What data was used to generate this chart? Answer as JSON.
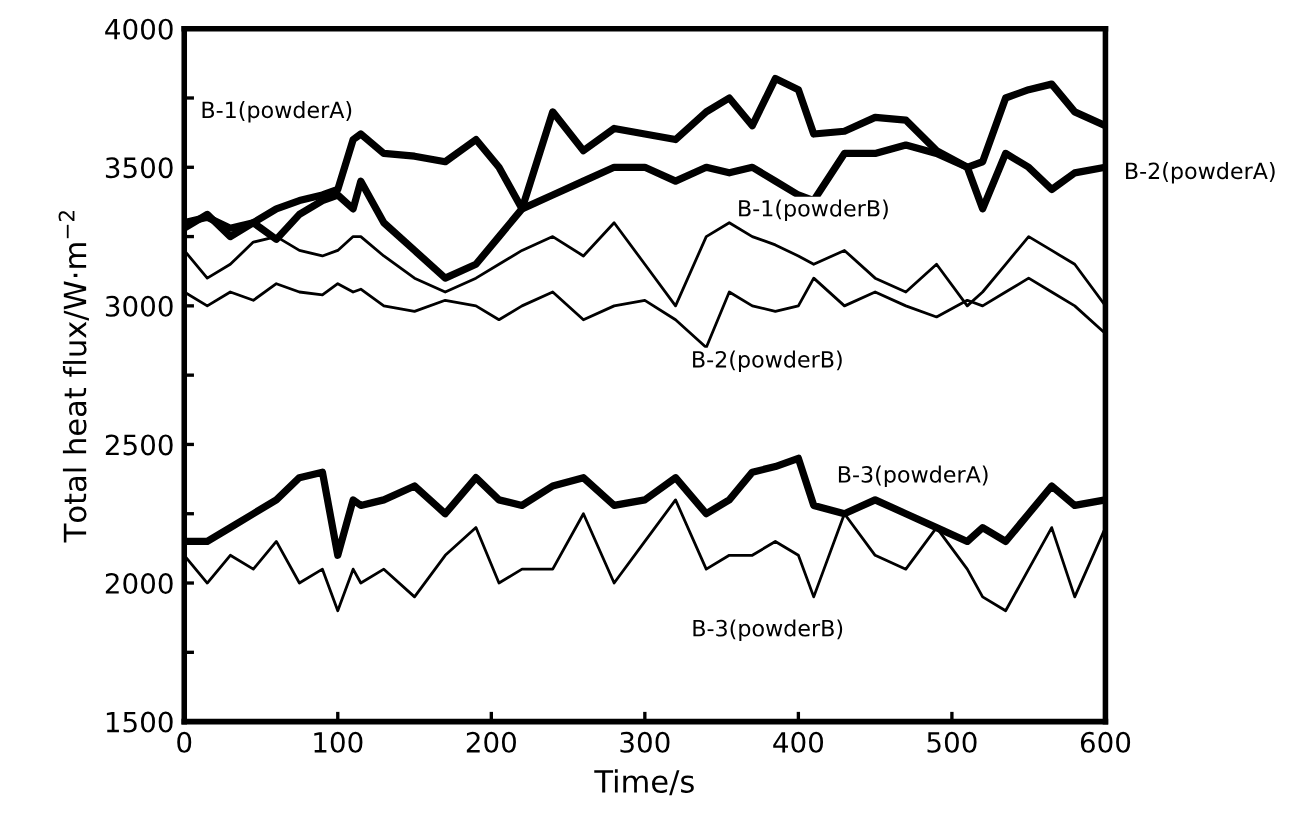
{
  "chart_data": {
    "type": "line",
    "xlabel": "Time/s",
    "ylabel": "Total heat flux/W·m$^{−2}$",
    "x": [
      0,
      15,
      30,
      45,
      60,
      75,
      90,
      100,
      110,
      115,
      130,
      150,
      170,
      190,
      205,
      220,
      240,
      260,
      280,
      300,
      320,
      340,
      355,
      370,
      385,
      400,
      410,
      430,
      450,
      470,
      490,
      510,
      520,
      535,
      550,
      565,
      580,
      600
    ],
    "series": [
      {
        "name": "B-1(powderA)",
        "color": "#000000",
        "values": [
          3300,
          3320,
          3280,
          3300,
          3350,
          3380,
          3400,
          3420,
          3600,
          3620,
          3550,
          3540,
          3520,
          3600,
          3500,
          3350,
          3700,
          3560,
          3640,
          3620,
          3600,
          3700,
          3750,
          3650,
          3820,
          3780,
          3620,
          3630,
          3680,
          3670,
          3560,
          3500,
          3520,
          3750,
          3780,
          3800,
          3700,
          3650
        ]
      },
      {
        "name": "B-2(powderA)",
        "color": "#000000",
        "values": [
          3280,
          3330,
          3250,
          3300,
          3240,
          3330,
          3380,
          3400,
          3350,
          3450,
          3300,
          3200,
          3100,
          3150,
          3250,
          3350,
          3400,
          3450,
          3500,
          3500,
          3450,
          3500,
          3480,
          3500,
          3450,
          3400,
          3380,
          3550,
          3550,
          3580,
          3550,
          3500,
          3350,
          3550,
          3500,
          3420,
          3480,
          3500
        ]
      },
      {
        "name": "B-1(powderB)",
        "color": "#000000",
        "values": [
          3200,
          3100,
          3150,
          3230,
          3250,
          3200,
          3180,
          3200,
          3250,
          3250,
          3180,
          3100,
          3050,
          3100,
          3150,
          3200,
          3250,
          3180,
          3300,
          3150,
          3000,
          3250,
          3300,
          3250,
          3220,
          3180,
          3150,
          3200,
          3100,
          3050,
          3150,
          3000,
          3050,
          3150,
          3250,
          3200,
          3150,
          3000
        ]
      },
      {
        "name": "B-2(powderB)",
        "color": "#000000",
        "values": [
          3050,
          3000,
          3050,
          3020,
          3080,
          3050,
          3040,
          3080,
          3050,
          3060,
          3000,
          2980,
          3020,
          3000,
          2950,
          3000,
          3050,
          2950,
          3000,
          3020,
          2950,
          2850,
          3050,
          3000,
          2980,
          3000,
          3100,
          3000,
          3050,
          3000,
          2960,
          3020,
          3000,
          3050,
          3100,
          3050,
          3000,
          2900
        ]
      },
      {
        "name": "B-3(powderA)",
        "color": "#000000",
        "values": [
          2150,
          2150,
          2200,
          2250,
          2300,
          2380,
          2400,
          2100,
          2300,
          2280,
          2300,
          2350,
          2250,
          2380,
          2300,
          2280,
          2350,
          2380,
          2280,
          2300,
          2380,
          2250,
          2300,
          2400,
          2420,
          2450,
          2280,
          2250,
          2300,
          2250,
          2200,
          2150,
          2200,
          2150,
          2250,
          2350,
          2280,
          2300
        ]
      },
      {
        "name": "B-3(powderB)",
        "color": "#000000",
        "values": [
          2100,
          2000,
          2100,
          2050,
          2150,
          2000,
          2050,
          1900,
          2050,
          2000,
          2050,
          1950,
          2100,
          2200,
          2000,
          2050,
          2050,
          2250,
          2000,
          2150,
          2300,
          2050,
          2100,
          2100,
          2150,
          2100,
          1950,
          2250,
          2100,
          2050,
          2200,
          2050,
          1950,
          1900,
          2050,
          2200,
          1950,
          2200
        ]
      }
    ],
    "xlim": [
      0,
      600
    ],
    "xticks": [
      0,
      100,
      200,
      300,
      400,
      500,
      600
    ],
    "ylim": [
      1500,
      4000
    ],
    "yticks": [
      1500,
      {
        "value": 1750,
        "label": null
      },
      2000,
      {
        "value": 2250,
        "label": null
      },
      2500,
      {
        "value": 2750,
        "label": null
      },
      3000,
      {
        "value": 3250,
        "label": null
      },
      3500,
      {
        "value": 3750,
        "label": null
      },
      4000
    ],
    "grid": false,
    "legend": false,
    "marker": "none",
    "line_style": "solid"
  }
}
